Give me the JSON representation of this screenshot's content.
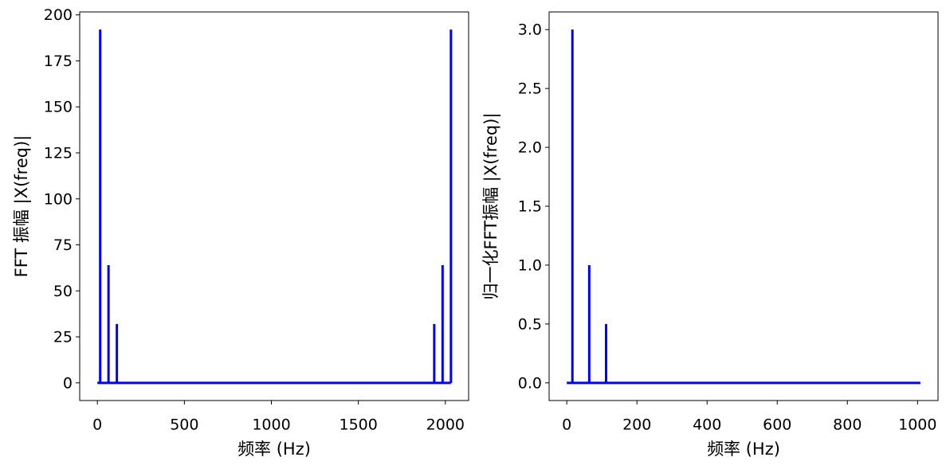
{
  "chart_data": [
    {
      "type": "stem",
      "xlabel": "频率 (Hz)",
      "ylabel": "FFT 振幅 |X(freq)|",
      "color": "#0000ff",
      "x": [
        0,
        16,
        32,
        48,
        64,
        80,
        96,
        112,
        128,
        144,
        160,
        176,
        192,
        208,
        224,
        240,
        256,
        272,
        288,
        304,
        320,
        336,
        352,
        368,
        384,
        400,
        416,
        432,
        448,
        464,
        480,
        496,
        512,
        528,
        544,
        560,
        576,
        592,
        608,
        624,
        640,
        656,
        672,
        688,
        704,
        720,
        736,
        752,
        768,
        784,
        800,
        816,
        832,
        848,
        864,
        880,
        896,
        912,
        928,
        944,
        960,
        976,
        992,
        1008,
        1024,
        1040,
        1056,
        1072,
        1088,
        1104,
        1120,
        1136,
        1152,
        1168,
        1184,
        1200,
        1216,
        1232,
        1248,
        1264,
        1280,
        1296,
        1312,
        1328,
        1344,
        1360,
        1376,
        1392,
        1408,
        1424,
        1440,
        1456,
        1472,
        1488,
        1504,
        1520,
        1536,
        1552,
        1568,
        1584,
        1600,
        1616,
        1632,
        1648,
        1664,
        1680,
        1696,
        1712,
        1728,
        1744,
        1760,
        1776,
        1792,
        1808,
        1824,
        1840,
        1856,
        1872,
        1888,
        1904,
        1920,
        1936,
        1952,
        1968,
        1984,
        2000,
        2016,
        2032
      ],
      "values": [
        0,
        192,
        0,
        0,
        64,
        0,
        0,
        32,
        0,
        0,
        0,
        0,
        0,
        0,
        0,
        0,
        0,
        0,
        0,
        0,
        0,
        0,
        0,
        0,
        0,
        0,
        0,
        0,
        0,
        0,
        0,
        0,
        0,
        0,
        0,
        0,
        0,
        0,
        0,
        0,
        0,
        0,
        0,
        0,
        0,
        0,
        0,
        0,
        0,
        0,
        0,
        0,
        0,
        0,
        0,
        0,
        0,
        0,
        0,
        0,
        0,
        0,
        0,
        0,
        0,
        0,
        0,
        0,
        0,
        0,
        0,
        0,
        0,
        0,
        0,
        0,
        0,
        0,
        0,
        0,
        0,
        0,
        0,
        0,
        0,
        0,
        0,
        0,
        0,
        0,
        0,
        0,
        0,
        0,
        0,
        0,
        0,
        0,
        0,
        0,
        0,
        0,
        0,
        0,
        0,
        0,
        0,
        0,
        0,
        0,
        0,
        0,
        0,
        0,
        0,
        0,
        0,
        0,
        0,
        0,
        0,
        32,
        0,
        0,
        64,
        0,
        0,
        192
      ],
      "xlim": [
        -101.6,
        2133.6
      ],
      "xticks": [
        0,
        500,
        1000,
        1500,
        2000
      ],
      "ylim": [
        -9.6,
        201.6
      ],
      "yticks": [
        0,
        25,
        50,
        75,
        100,
        125,
        150,
        175,
        200
      ]
    },
    {
      "type": "stem",
      "xlabel": "频率 (Hz)",
      "ylabel": "归一化FFT振幅 |X(freq)|",
      "color": "#0000ff",
      "x": [
        0,
        16,
        32,
        48,
        64,
        80,
        96,
        112,
        128,
        144,
        160,
        176,
        192,
        208,
        224,
        240,
        256,
        272,
        288,
        304,
        320,
        336,
        352,
        368,
        384,
        400,
        416,
        432,
        448,
        464,
        480,
        496,
        512,
        528,
        544,
        560,
        576,
        592,
        608,
        624,
        640,
        656,
        672,
        688,
        704,
        720,
        736,
        752,
        768,
        784,
        800,
        816,
        832,
        848,
        864,
        880,
        896,
        912,
        928,
        944,
        960,
        976,
        992,
        1008
      ],
      "values": [
        0,
        3,
        0,
        0,
        1,
        0,
        0,
        0.5,
        0,
        0,
        0,
        0,
        0,
        0,
        0,
        0,
        0,
        0,
        0,
        0,
        0,
        0,
        0,
        0,
        0,
        0,
        0,
        0,
        0,
        0,
        0,
        0,
        0,
        0,
        0,
        0,
        0,
        0,
        0,
        0,
        0,
        0,
        0,
        0,
        0,
        0,
        0,
        0,
        0,
        0,
        0,
        0,
        0,
        0,
        0,
        0,
        0,
        0,
        0,
        0,
        0,
        0,
        0,
        0
      ],
      "xlim": [
        -50.4,
        1058.4
      ],
      "xticks": [
        0,
        200,
        400,
        600,
        800,
        1000
      ],
      "ylim": [
        -0.15,
        3.15
      ],
      "yticks": [
        {
          "value": 0,
          "label": "0.0"
        },
        0.5,
        {
          "value": 1,
          "label": "1.0"
        },
        1.5,
        {
          "value": 2,
          "label": "2.0"
        },
        2.5,
        {
          "value": 3,
          "label": "3.0"
        }
      ]
    }
  ]
}
